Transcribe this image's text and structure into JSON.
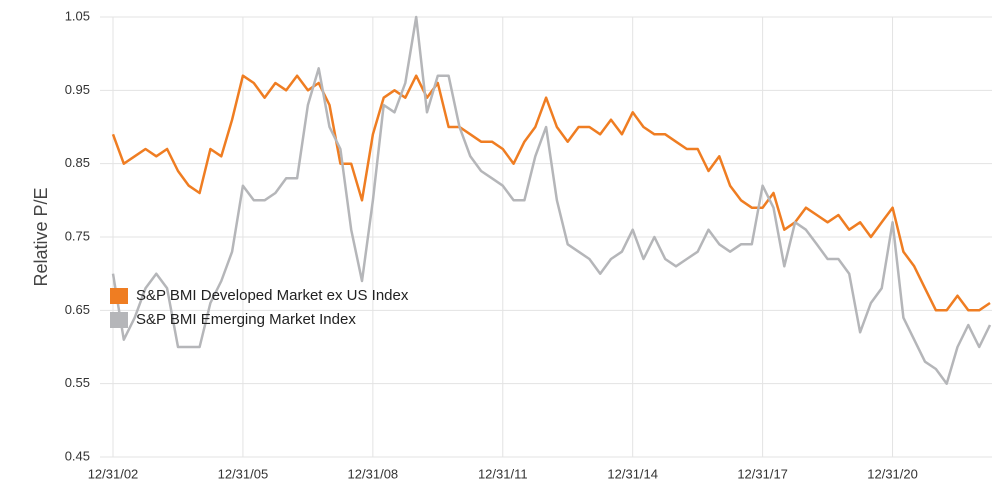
{
  "chart_data": {
    "type": "line",
    "y_label": "Relative P/E",
    "categories": [
      "12/31/02",
      null,
      null,
      null,
      null,
      null,
      null,
      null,
      null,
      null,
      null,
      null,
      "12/31/05",
      null,
      null,
      null,
      null,
      null,
      null,
      null,
      null,
      null,
      null,
      null,
      "12/31/08",
      null,
      null,
      null,
      null,
      null,
      null,
      null,
      null,
      null,
      null,
      null,
      "12/31/11",
      null,
      null,
      null,
      null,
      null,
      null,
      null,
      null,
      null,
      null,
      null,
      "12/31/14",
      null,
      null,
      null,
      null,
      null,
      null,
      null,
      null,
      null,
      null,
      null,
      "12/31/17",
      null,
      null,
      null,
      null,
      null,
      null,
      null,
      null,
      null,
      null,
      null,
      "12/31/20",
      null,
      null,
      null,
      null,
      null,
      null,
      null,
      null,
      null
    ],
    "series": [
      {
        "name": "S&P BMI Developed Market ex US Index",
        "color": "#ef7d22",
        "values": [
          0.89,
          0.85,
          0.86,
          0.87,
          0.86,
          0.87,
          0.84,
          0.82,
          0.81,
          0.87,
          0.86,
          0.91,
          0.97,
          0.96,
          0.94,
          0.96,
          0.95,
          0.97,
          0.95,
          0.96,
          0.93,
          0.85,
          0.85,
          0.8,
          0.89,
          0.94,
          0.95,
          0.94,
          0.97,
          0.94,
          0.96,
          0.9,
          0.9,
          0.89,
          0.88,
          0.88,
          0.87,
          0.85,
          0.88,
          0.9,
          0.94,
          0.9,
          0.88,
          0.9,
          0.9,
          0.89,
          0.91,
          0.89,
          0.92,
          0.9,
          0.89,
          0.89,
          0.88,
          0.87,
          0.87,
          0.84,
          0.86,
          0.82,
          0.8,
          0.79,
          0.79,
          0.81,
          0.76,
          0.77,
          0.79,
          0.78,
          0.77,
          0.78,
          0.76,
          0.77,
          0.75,
          0.77,
          0.79,
          0.73,
          0.71,
          0.68,
          0.65,
          0.65,
          0.67,
          0.65,
          0.65,
          0.66
        ]
      },
      {
        "name": "S&P BMI Emerging Market Index",
        "color": "#b5b6b9",
        "values": [
          0.7,
          0.61,
          0.64,
          0.68,
          0.7,
          0.68,
          0.6,
          0.6,
          0.6,
          0.66,
          0.69,
          0.73,
          0.82,
          0.8,
          0.8,
          0.81,
          0.83,
          0.83,
          0.93,
          0.98,
          0.9,
          0.87,
          0.76,
          0.69,
          0.8,
          0.93,
          0.92,
          0.96,
          1.05,
          0.92,
          0.97,
          0.97,
          0.9,
          0.86,
          0.84,
          0.83,
          0.82,
          0.8,
          0.8,
          0.86,
          0.9,
          0.8,
          0.74,
          0.73,
          0.72,
          0.7,
          0.72,
          0.73,
          0.76,
          0.72,
          0.75,
          0.72,
          0.71,
          0.72,
          0.73,
          0.76,
          0.74,
          0.73,
          0.74,
          0.74,
          0.82,
          0.79,
          0.71,
          0.77,
          0.76,
          0.74,
          0.72,
          0.72,
          0.7,
          0.62,
          0.66,
          0.68,
          0.77,
          0.64,
          0.61,
          0.58,
          0.57,
          0.55,
          0.6,
          0.63,
          0.6,
          0.63
        ]
      }
    ],
    "ylim": [
      0.45,
      1.05
    ],
    "yticks": [
      0.45,
      0.55,
      0.65,
      0.75,
      0.85,
      0.95,
      1.05
    ],
    "grid": true
  }
}
